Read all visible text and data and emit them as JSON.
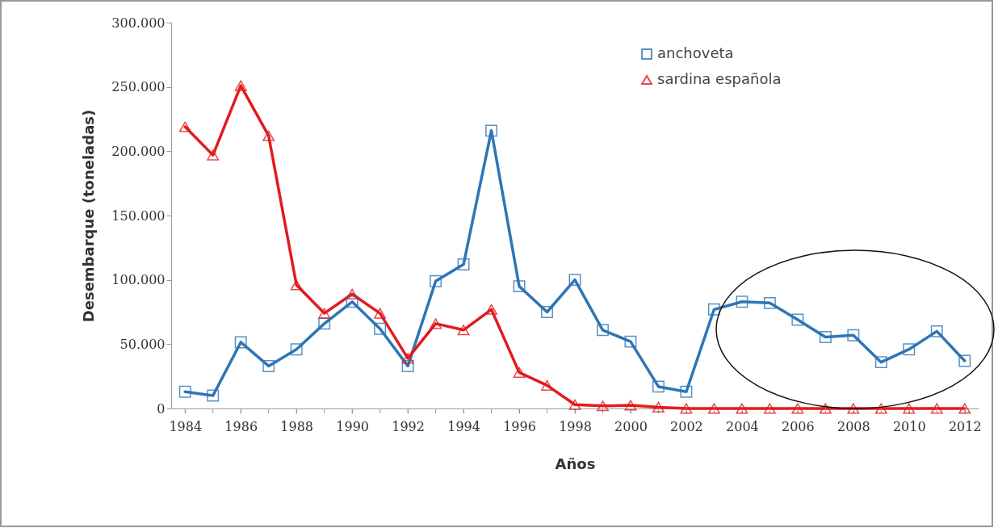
{
  "chart_data": {
    "type": "line",
    "xlabel": "Años",
    "ylabel": "Desembarque (toneladas)",
    "x": [
      1984,
      1985,
      1986,
      1987,
      1988,
      1989,
      1990,
      1991,
      1992,
      1993,
      1994,
      1995,
      1996,
      1997,
      1998,
      1999,
      2000,
      2001,
      2002,
      2003,
      2004,
      2005,
      2006,
      2007,
      2008,
      2009,
      2010,
      2011,
      2012
    ],
    "series": [
      {
        "name": "anchoveta",
        "color": "#2e75b6",
        "marker": "square",
        "values": [
          13000,
          10000,
          51500,
          33000,
          46000,
          66000,
          83000,
          62000,
          33000,
          99000,
          112000,
          216000,
          95000,
          75000,
          100000,
          61000,
          52000,
          17000,
          13000,
          77000,
          83000,
          82000,
          69000,
          55500,
          57000,
          36000,
          46000,
          60000,
          37000
        ]
      },
      {
        "name": "sardina española",
        "color": "#e31a1c",
        "marker": "triangle",
        "values": [
          219000,
          197000,
          251000,
          212000,
          96000,
          74000,
          89000,
          74000,
          39000,
          66000,
          61000,
          77000,
          28000,
          18000,
          3000,
          2000,
          2500,
          1000,
          0,
          0,
          0,
          0,
          0,
          0,
          0,
          0,
          0,
          0,
          0
        ]
      }
    ],
    "xlim": [
      1983.5,
      2012.5
    ],
    "xticks": [
      1984,
      {
        "value": 1985,
        "label": null
      },
      1986,
      {
        "value": 1987,
        "label": null
      },
      1988,
      {
        "value": 1989,
        "label": null
      },
      1990,
      {
        "value": 1991,
        "label": null
      },
      1992,
      {
        "value": 1993,
        "label": null
      },
      1994,
      {
        "value": 1995,
        "label": null
      },
      1996,
      {
        "value": 1997,
        "label": null
      },
      1998,
      {
        "value": 1999,
        "label": null
      },
      2000,
      {
        "value": 2001,
        "label": null
      },
      2002,
      {
        "value": 2003,
        "label": null
      },
      2004,
      {
        "value": 2005,
        "label": null
      },
      2006,
      {
        "value": 2007,
        "label": null
      },
      2008,
      {
        "value": 2009,
        "label": null
      },
      2010,
      {
        "value": 2011,
        "label": null
      },
      2012
    ],
    "ylim": [
      0,
      300000
    ],
    "yticks": [
      0,
      {
        "value": 50000,
        "label": "50.000"
      },
      {
        "value": 100000,
        "label": "100.000"
      },
      {
        "value": 150000,
        "label": "150.000"
      },
      {
        "value": 200000,
        "label": "200.000"
      },
      {
        "value": 250000,
        "label": "250.000"
      },
      {
        "value": 300000,
        "label": "300.000"
      }
    ],
    "grid": false,
    "legend": "top right",
    "line_style": "solid"
  }
}
